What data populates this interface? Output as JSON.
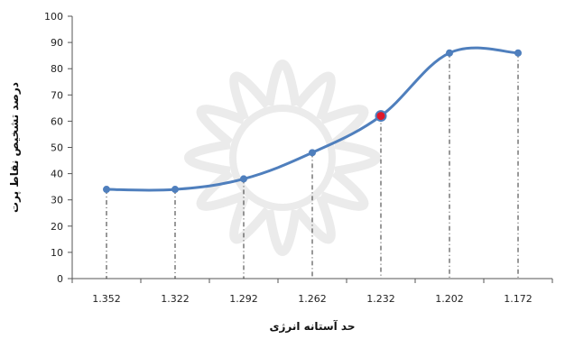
{
  "chart_data": {
    "type": "line",
    "title": "",
    "xlabel": "حد آستانه انرژی",
    "ylabel": "درصد تشخیص نقاط پرت",
    "categories": [
      "1.352",
      "1.322",
      "1.292",
      "1.262",
      "1.232",
      "1.202",
      "1.172"
    ],
    "series": [
      {
        "values": [
          34,
          34,
          38,
          48,
          62,
          86,
          86
        ]
      }
    ],
    "highlight_index": 4,
    "ylim": [
      0,
      100
    ],
    "yticks": [
      0,
      10,
      20,
      30,
      40,
      50,
      60,
      70,
      80,
      90,
      100
    ],
    "grid": "vertical dashed drop lines",
    "legend": "none",
    "colors": {
      "line": "#4f7fbd",
      "marker": "#4f7fbd",
      "highlight": "#e0182a",
      "axis": "#555555",
      "drop_line": "#333333",
      "watermark": "#c8c8c8"
    }
  }
}
